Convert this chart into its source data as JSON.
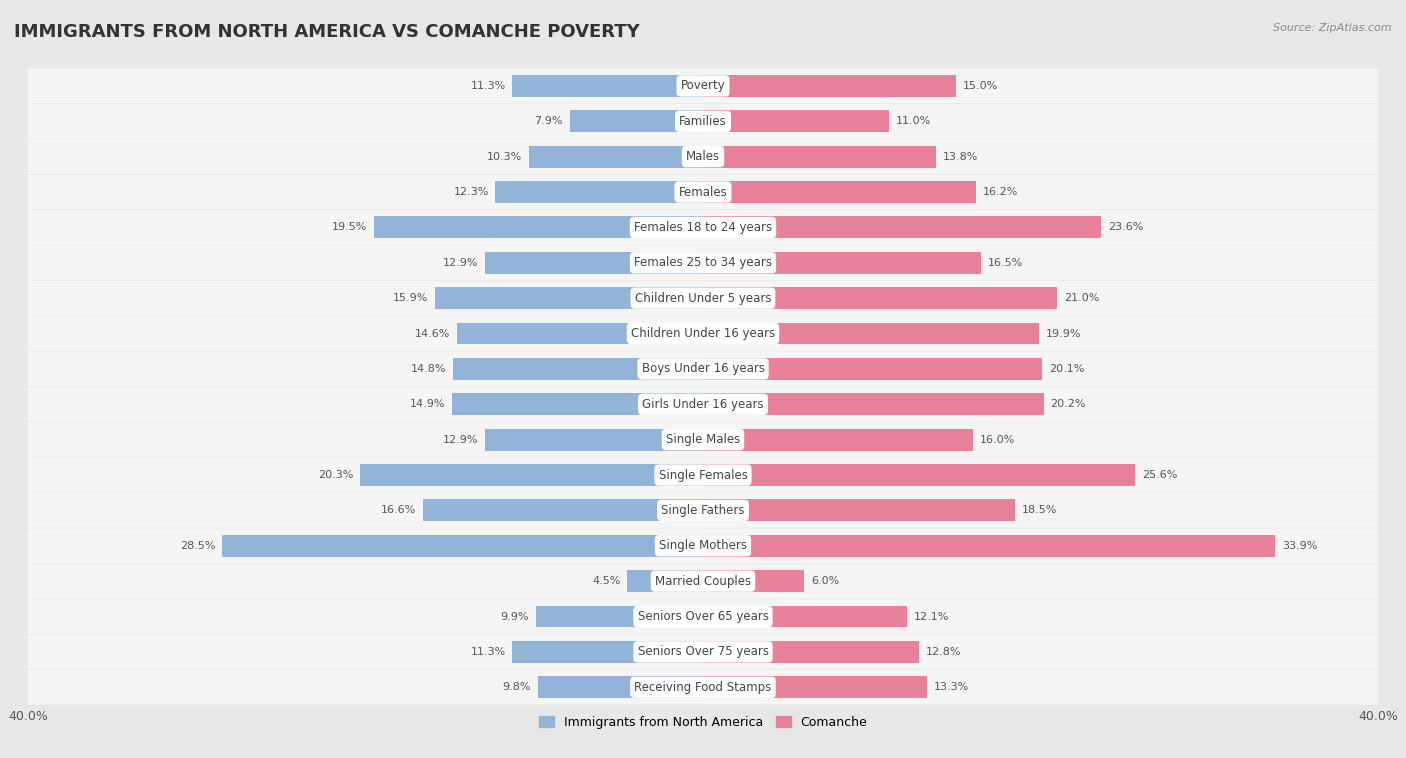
{
  "title": "IMMIGRANTS FROM NORTH AMERICA VS COMANCHE POVERTY",
  "source": "Source: ZipAtlas.com",
  "categories": [
    "Poverty",
    "Families",
    "Males",
    "Females",
    "Females 18 to 24 years",
    "Females 25 to 34 years",
    "Children Under 5 years",
    "Children Under 16 years",
    "Boys Under 16 years",
    "Girls Under 16 years",
    "Single Males",
    "Single Females",
    "Single Fathers",
    "Single Mothers",
    "Married Couples",
    "Seniors Over 65 years",
    "Seniors Over 75 years",
    "Receiving Food Stamps"
  ],
  "left_values": [
    11.3,
    7.9,
    10.3,
    12.3,
    19.5,
    12.9,
    15.9,
    14.6,
    14.8,
    14.9,
    12.9,
    20.3,
    16.6,
    28.5,
    4.5,
    9.9,
    11.3,
    9.8
  ],
  "right_values": [
    15.0,
    11.0,
    13.8,
    16.2,
    23.6,
    16.5,
    21.0,
    19.9,
    20.1,
    20.2,
    16.0,
    25.6,
    18.5,
    33.9,
    6.0,
    12.1,
    12.8,
    13.3
  ],
  "left_color": "#92b4d8",
  "right_color": "#e8829a",
  "axis_limit": 40.0,
  "background_color": "#e8e8e8",
  "bar_background": "#f5f5f5",
  "title_fontsize": 13,
  "label_fontsize": 8.5,
  "value_fontsize": 8,
  "legend_labels": [
    "Immigrants from North America",
    "Comanche"
  ]
}
